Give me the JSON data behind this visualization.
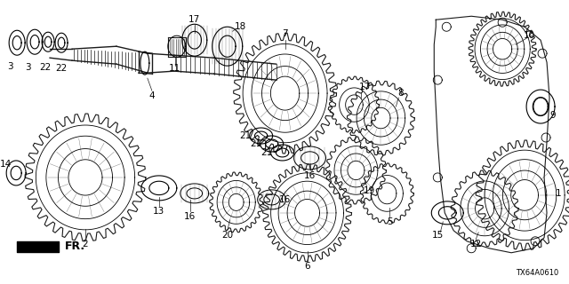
{
  "bg_color": "#ffffff",
  "diagram_code": "TX64A0610",
  "line_color": "#1a1a1a",
  "label_fontsize": 7.5
}
